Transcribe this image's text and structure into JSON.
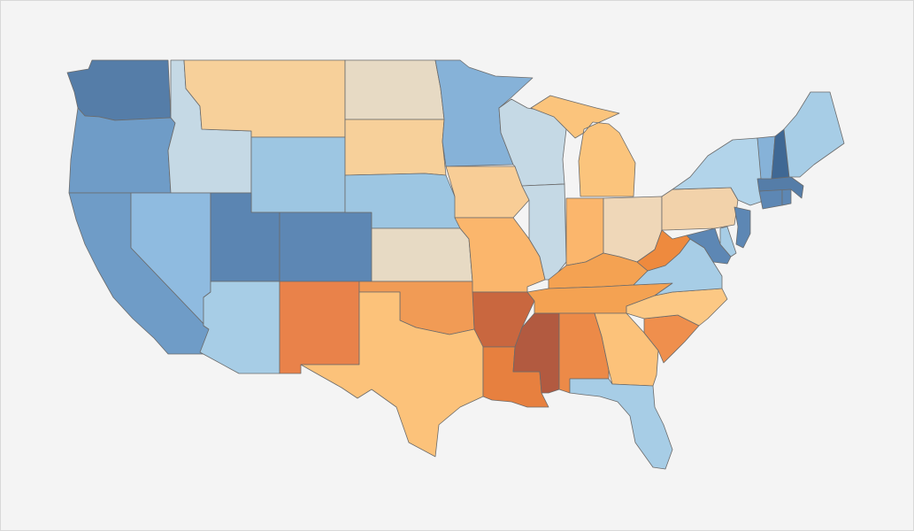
{
  "map": {
    "type": "choropleth",
    "region": "United States",
    "scale": {
      "low_color": "#4f79a6",
      "mid_color": "#e9dcc6",
      "high_color": "#b45a3c"
    },
    "states": [
      {
        "id": "WA",
        "fill": "#557da8"
      },
      {
        "id": "OR",
        "fill": "#6f9cc7"
      },
      {
        "id": "CA",
        "fill": "#6f9cc7"
      },
      {
        "id": "ID",
        "fill": "#c5d9e5"
      },
      {
        "id": "NV",
        "fill": "#8fbbe0"
      },
      {
        "id": "MT",
        "fill": "#f7d09a"
      },
      {
        "id": "WY",
        "fill": "#9dc6e2"
      },
      {
        "id": "UT",
        "fill": "#5b85b2"
      },
      {
        "id": "AZ",
        "fill": "#a7cde6"
      },
      {
        "id": "CO",
        "fill": "#5d87b4"
      },
      {
        "id": "NM",
        "fill": "#e9824a"
      },
      {
        "id": "ND",
        "fill": "#e7dac4"
      },
      {
        "id": "SD",
        "fill": "#f7d09a"
      },
      {
        "id": "NE",
        "fill": "#9dc6e2"
      },
      {
        "id": "KS",
        "fill": "#e7dac4"
      },
      {
        "id": "OK",
        "fill": "#f19b55"
      },
      {
        "id": "TX",
        "fill": "#fcc27a"
      },
      {
        "id": "MN",
        "fill": "#86b2d8"
      },
      {
        "id": "IA",
        "fill": "#f8cd96"
      },
      {
        "id": "MO",
        "fill": "#fbb66c"
      },
      {
        "id": "AR",
        "fill": "#c9673f"
      },
      {
        "id": "LA",
        "fill": "#e7803f"
      },
      {
        "id": "WI",
        "fill": "#c5d9e5"
      },
      {
        "id": "IL",
        "fill": "#c5d9e5"
      },
      {
        "id": "MI",
        "fill": "#fbc47c"
      },
      {
        "id": "IN",
        "fill": "#fbb66c"
      },
      {
        "id": "OH",
        "fill": "#efd7b8"
      },
      {
        "id": "KY",
        "fill": "#f4a252"
      },
      {
        "id": "TN",
        "fill": "#f4a252"
      },
      {
        "id": "MS",
        "fill": "#b25a40"
      },
      {
        "id": "AL",
        "fill": "#ec8a48"
      },
      {
        "id": "GA",
        "fill": "#fcc27a"
      },
      {
        "id": "FL",
        "fill": "#a7cde6"
      },
      {
        "id": "SC",
        "fill": "#ef8f4d"
      },
      {
        "id": "NC",
        "fill": "#fcc884"
      },
      {
        "id": "VA",
        "fill": "#a7cde6"
      },
      {
        "id": "WV",
        "fill": "#ee8a3e"
      },
      {
        "id": "PA",
        "fill": "#f2d2aa"
      },
      {
        "id": "NY",
        "fill": "#b2d4ea"
      },
      {
        "id": "MD",
        "fill": "#5d87b4"
      },
      {
        "id": "DE",
        "fill": "#a7cde6"
      },
      {
        "id": "NJ",
        "fill": "#5d87b4"
      },
      {
        "id": "CT",
        "fill": "#5d87b4"
      },
      {
        "id": "RI",
        "fill": "#5d87b4"
      },
      {
        "id": "MA",
        "fill": "#557da8"
      },
      {
        "id": "VT",
        "fill": "#86b2d8"
      },
      {
        "id": "NH",
        "fill": "#3f6894"
      },
      {
        "id": "ME",
        "fill": "#a7cde6"
      }
    ]
  }
}
